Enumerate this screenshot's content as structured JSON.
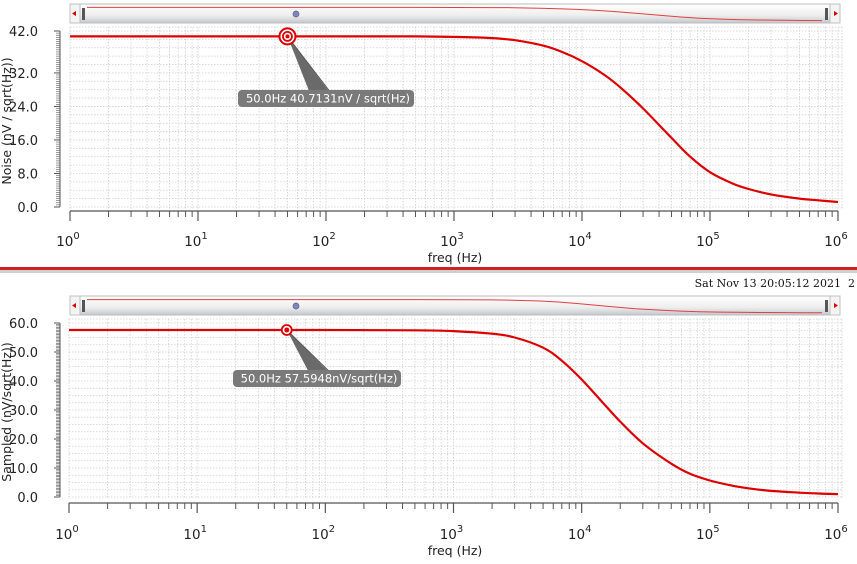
{
  "colors": {
    "trace": "#dd0000",
    "grid": "#cfcfcf",
    "axis": "#555555",
    "marker_label_bg": "#7a7a7a",
    "marker_label_text": "#ffffff",
    "divider": "#cc2222"
  },
  "timestamp": "Sat Nov 13 20:05:12 2021  2",
  "chart_data": [
    {
      "type": "line",
      "title": "",
      "xlabel": "freq (Hz)",
      "ylabel": "Noise (nV / sqrt(Hz))",
      "xscale": "log",
      "xlim": [
        1,
        1000000
      ],
      "ylim": [
        0,
        42
      ],
      "yticks": [
        "42.0",
        "32.0",
        "24.0",
        "16.0",
        "8.0",
        "0.0"
      ],
      "ytick_values": [
        42,
        32,
        24,
        16,
        8,
        0
      ],
      "xticks": [
        {
          "base": "10",
          "exp": "0"
        },
        {
          "base": "10",
          "exp": "1"
        },
        {
          "base": "10",
          "exp": "2"
        },
        {
          "base": "10",
          "exp": "3"
        },
        {
          "base": "10",
          "exp": "4"
        },
        {
          "base": "10",
          "exp": "5"
        },
        {
          "base": "10",
          "exp": "6"
        }
      ],
      "grid": true,
      "series": [
        {
          "name": "Noise",
          "x": [
            1,
            10,
            100,
            500,
            1000,
            2000,
            3000,
            5000,
            7000,
            10000,
            15000,
            20000,
            30000,
            50000,
            70000,
            100000,
            150000,
            200000,
            300000,
            500000,
            700000,
            1000000
          ],
          "values": [
            40.71,
            40.71,
            40.71,
            40.7,
            40.6,
            40.3,
            39.8,
            38.5,
            37.0,
            34.8,
            31.5,
            28.5,
            23.5,
            16.5,
            12.0,
            8.3,
            5.6,
            4.3,
            3.0,
            2.0,
            1.6,
            1.2
          ]
        }
      ],
      "marker": {
        "x": 50,
        "y": 40.7131,
        "label": "50.0Hz 40.7131nV / sqrt(Hz)"
      }
    },
    {
      "type": "line",
      "title": "",
      "xlabel": "freq (Hz)",
      "ylabel": "Sampled (nV/sqrt(Hz))",
      "xscale": "log",
      "xlim": [
        1,
        1000000
      ],
      "ylim": [
        0,
        60
      ],
      "yticks": [
        "60.0",
        "50.0",
        "40.0",
        "30.0",
        "20.0",
        "10.0",
        "0.0"
      ],
      "ytick_values": [
        60,
        50,
        40,
        30,
        20,
        10,
        0
      ],
      "xticks": [
        {
          "base": "10",
          "exp": "0"
        },
        {
          "base": "10",
          "exp": "1"
        },
        {
          "base": "10",
          "exp": "2"
        },
        {
          "base": "10",
          "exp": "3"
        },
        {
          "base": "10",
          "exp": "4"
        },
        {
          "base": "10",
          "exp": "5"
        },
        {
          "base": "10",
          "exp": "6"
        }
      ],
      "grid": true,
      "series": [
        {
          "name": "Sampled",
          "x": [
            1,
            10,
            100,
            500,
            1000,
            2000,
            3000,
            5000,
            7000,
            10000,
            15000,
            20000,
            30000,
            50000,
            70000,
            100000,
            150000,
            200000,
            300000,
            500000,
            700000,
            1000000
          ],
          "values": [
            57.59,
            57.59,
            57.59,
            57.5,
            57.2,
            56.3,
            55.0,
            51.5,
            47.0,
            40.5,
            32.0,
            26.0,
            18.5,
            11.5,
            8.0,
            5.7,
            3.9,
            3.0,
            2.1,
            1.5,
            1.2,
            1.0
          ]
        }
      ],
      "marker": {
        "x": 50,
        "y": 57.5948,
        "label": "50.0Hz 57.5948nV/sqrt(Hz)"
      }
    }
  ]
}
